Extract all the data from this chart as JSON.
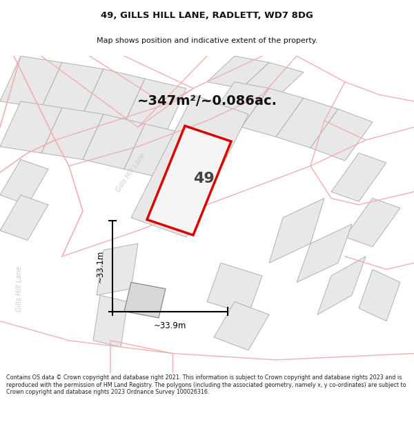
{
  "title_line1": "49, GILLS HILL LANE, RADLETT, WD7 8DG",
  "title_line2": "Map shows position and indicative extent of the property.",
  "area_label": "~347m²/~0.086ac.",
  "number_label": "49",
  "dim_vertical": "~33.1m",
  "dim_horizontal": "~33.9m",
  "road_label_diag": "Gills Hill Lane",
  "road_label_vert": "Gills Hill Lane",
  "footer_text": "Contains OS data © Crown copyright and database right 2021. This information is subject to Crown copyright and database rights 2023 and is reproduced with the permission of HM Land Registry. The polygons (including the associated geometry, namely x, y co-ordinates) are subject to Crown copyright and database rights 2023 Ordnance Survey 100026316.",
  "bg_color": "#ffffff",
  "map_bg": "#ffffff",
  "parcel_fill": "#e8e8e8",
  "parcel_edge": "#b0b0b0",
  "property_fill": "#f5f5f5",
  "property_edge": "#dd0000",
  "road_line": "#f0b0b0",
  "dim_color": "#000000",
  "label_color": "#cccccc",
  "title_color": "#111111",
  "footer_color": "#222222",
  "title_fs": 9.5,
  "subtitle_fs": 8.0,
  "area_fs": 14,
  "num_fs": 16,
  "dim_fs": 8.5,
  "road_lbl_fs": 7.0,
  "footer_fs": 5.8
}
